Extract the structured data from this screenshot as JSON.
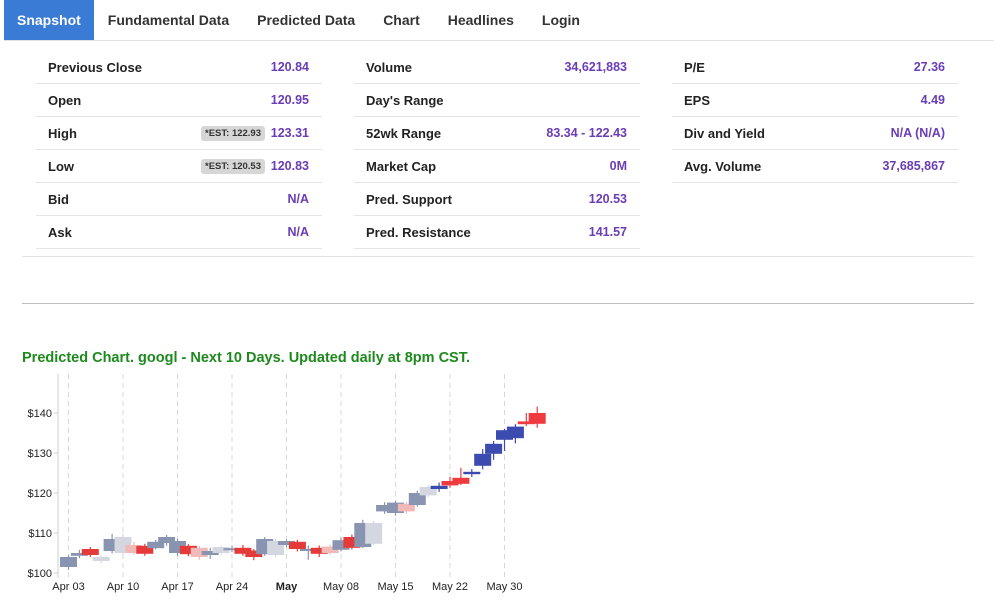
{
  "tabs": [
    {
      "label": "Snapshot",
      "active": true
    },
    {
      "label": "Fundamental Data",
      "active": false
    },
    {
      "label": "Predicted Data",
      "active": false
    },
    {
      "label": "Chart",
      "active": false
    },
    {
      "label": "Headlines",
      "active": false
    },
    {
      "label": "Login",
      "active": false
    }
  ],
  "snapshot": {
    "col1": [
      {
        "label": "Previous Close",
        "value": "120.84"
      },
      {
        "label": "Open",
        "value": "120.95"
      },
      {
        "label": "High",
        "value": "123.31",
        "est": "*EST: 122.93"
      },
      {
        "label": "Low",
        "value": "120.83",
        "est": "*EST: 120.53"
      },
      {
        "label": "Bid",
        "value": "N/A"
      },
      {
        "label": "Ask",
        "value": "N/A"
      }
    ],
    "col2": [
      {
        "label": "Volume",
        "value": "34,621,883"
      },
      {
        "label": "Day's Range",
        "value": ""
      },
      {
        "label": "52wk Range",
        "value": "83.34 - 122.43"
      },
      {
        "label": "Market Cap",
        "value": "0M"
      },
      {
        "label": "Pred. Support",
        "value": "120.53"
      },
      {
        "label": "Pred. Resistance",
        "value": "141.57"
      }
    ],
    "col3": [
      {
        "label": "P/E",
        "value": "27.36"
      },
      {
        "label": "EPS",
        "value": "4.49"
      },
      {
        "label": "Div and Yield",
        "value": "N/A (N/A)"
      },
      {
        "label": "Avg. Volume",
        "value": "37,685,867"
      }
    ]
  },
  "chart_title": "Predicted Chart. googl - Next 10 Days. Updated daily at 8pm CST.",
  "colors": {
    "title_green": "#1d8a1d",
    "value_purple": "#6a3cb5",
    "tab_active": "#3a7bd5",
    "hist_up": "#8894b0",
    "hist_down": "#d4d6e0",
    "hist_red": "#e53a3a",
    "hist_pink": "#f2b9b9",
    "pred_blue": "#3b4bb0",
    "pred_red": "#ef3a3f"
  },
  "chart_data": {
    "type": "candlestick",
    "title": "",
    "xlabel": "",
    "ylabel": "",
    "ylim": [
      100,
      144
    ],
    "yticks": [
      100,
      110,
      120,
      130,
      140
    ],
    "ytick_labels": [
      "$100",
      "$110",
      "$120",
      "$130",
      "$140"
    ],
    "xticks": [
      {
        "label": "Apr 03",
        "index": 0,
        "bold": false
      },
      {
        "label": "Apr 10",
        "index": 5,
        "bold": false
      },
      {
        "label": "Apr 17",
        "index": 10,
        "bold": false
      },
      {
        "label": "Apr 24",
        "index": 15,
        "bold": false
      },
      {
        "label": "May",
        "index": 20,
        "bold": true
      },
      {
        "label": "May 08",
        "index": 25,
        "bold": false
      },
      {
        "label": "May 15",
        "index": 30,
        "bold": false
      },
      {
        "label": "May 22",
        "index": 35,
        "bold": false
      },
      {
        "label": "May 30",
        "index": 40,
        "bold": false
      }
    ],
    "candles": [
      {
        "o": 101.5,
        "c": 104.0,
        "h": 104.5,
        "l": 100.8,
        "kind": "hist_up"
      },
      {
        "o": 104.3,
        "c": 105.0,
        "h": 105.8,
        "l": 103.7,
        "kind": "hist_up"
      },
      {
        "o": 104.5,
        "c": 106.0,
        "h": 106.5,
        "l": 104.0,
        "kind": "hist_red"
      },
      {
        "o": 104.0,
        "c": 103.0,
        "h": 104.4,
        "l": 102.5,
        "kind": "hist_down"
      },
      {
        "o": 105.5,
        "c": 108.5,
        "h": 109.8,
        "l": 104.9,
        "kind": "hist_up"
      },
      {
        "o": 109.0,
        "c": 105.0,
        "h": 109.9,
        "l": 104.5,
        "kind": "hist_down"
      },
      {
        "o": 105.0,
        "c": 107.0,
        "h": 107.8,
        "l": 104.6,
        "kind": "hist_pink"
      },
      {
        "o": 104.8,
        "c": 106.8,
        "h": 107.3,
        "l": 104.3,
        "kind": "hist_red"
      },
      {
        "o": 106.2,
        "c": 107.8,
        "h": 108.3,
        "l": 105.9,
        "kind": "hist_up"
      },
      {
        "o": 107.5,
        "c": 109.0,
        "h": 109.5,
        "l": 106.8,
        "kind": "hist_up"
      },
      {
        "o": 108.0,
        "c": 105.0,
        "h": 108.6,
        "l": 104.3,
        "kind": "hist_up"
      },
      {
        "o": 104.7,
        "c": 106.8,
        "h": 107.2,
        "l": 104.2,
        "kind": "hist_red"
      },
      {
        "o": 104.0,
        "c": 106.3,
        "h": 106.8,
        "l": 103.3,
        "kind": "hist_pink"
      },
      {
        "o": 104.5,
        "c": 105.5,
        "h": 106.3,
        "l": 103.5,
        "kind": "hist_up"
      },
      {
        "o": 105.0,
        "c": 106.5,
        "h": 106.8,
        "l": 104.6,
        "kind": "hist_down"
      },
      {
        "o": 105.8,
        "c": 106.2,
        "h": 106.8,
        "l": 105.2,
        "kind": "hist_up"
      },
      {
        "o": 104.8,
        "c": 106.3,
        "h": 107.0,
        "l": 104.3,
        "kind": "hist_red"
      },
      {
        "o": 104.0,
        "c": 105.6,
        "h": 106.0,
        "l": 103.2,
        "kind": "hist_red"
      },
      {
        "o": 104.7,
        "c": 108.5,
        "h": 109.0,
        "l": 104.3,
        "kind": "hist_up"
      },
      {
        "o": 108.0,
        "c": 104.5,
        "h": 108.5,
        "l": 104.0,
        "kind": "hist_down"
      },
      {
        "o": 107.0,
        "c": 108.0,
        "h": 108.4,
        "l": 106.4,
        "kind": "hist_up"
      },
      {
        "o": 106.0,
        "c": 107.8,
        "h": 108.3,
        "l": 105.4,
        "kind": "hist_red"
      },
      {
        "o": 105.6,
        "c": 106.0,
        "h": 106.9,
        "l": 103.3,
        "kind": "hist_up"
      },
      {
        "o": 104.8,
        "c": 106.3,
        "h": 106.9,
        "l": 104.0,
        "kind": "hist_red"
      },
      {
        "o": 105.0,
        "c": 106.6,
        "h": 107.1,
        "l": 104.6,
        "kind": "hist_pink"
      },
      {
        "o": 105.8,
        "c": 108.2,
        "h": 108.9,
        "l": 105.4,
        "kind": "hist_up"
      },
      {
        "o": 106.3,
        "c": 109.0,
        "h": 109.6,
        "l": 105.9,
        "kind": "hist_red"
      },
      {
        "o": 106.5,
        "c": 112.5,
        "h": 113.3,
        "l": 106.2,
        "kind": "hist_up"
      },
      {
        "o": 112.5,
        "c": 107.3,
        "h": 113.0,
        "l": 107.0,
        "kind": "hist_down"
      },
      {
        "o": 115.4,
        "c": 117.0,
        "h": 117.7,
        "l": 114.8,
        "kind": "hist_up"
      },
      {
        "o": 117.6,
        "c": 115.0,
        "h": 118.0,
        "l": 114.3,
        "kind": "hist_up"
      },
      {
        "o": 115.4,
        "c": 117.3,
        "h": 117.8,
        "l": 114.8,
        "kind": "hist_pink"
      },
      {
        "o": 117.0,
        "c": 120.0,
        "h": 120.6,
        "l": 116.6,
        "kind": "hist_up"
      },
      {
        "o": 119.4,
        "c": 121.5,
        "h": 122.0,
        "l": 118.9,
        "kind": "hist_down"
      },
      {
        "o": 121.0,
        "c": 121.8,
        "h": 122.6,
        "l": 120.3,
        "kind": "pred_blue"
      },
      {
        "o": 121.9,
        "c": 123.0,
        "h": 124.0,
        "l": 121.3,
        "kind": "pred_red"
      },
      {
        "o": 122.3,
        "c": 123.8,
        "h": 126.3,
        "l": 122.0,
        "kind": "pred_red"
      },
      {
        "o": 124.7,
        "c": 125.3,
        "h": 126.0,
        "l": 124.0,
        "kind": "pred_blue"
      },
      {
        "o": 126.8,
        "c": 129.8,
        "h": 131.0,
        "l": 125.9,
        "kind": "pred_blue"
      },
      {
        "o": 129.8,
        "c": 132.3,
        "h": 133.0,
        "l": 128.3,
        "kind": "pred_blue"
      },
      {
        "o": 133.3,
        "c": 135.7,
        "h": 136.0,
        "l": 130.5,
        "kind": "pred_blue"
      },
      {
        "o": 133.7,
        "c": 136.6,
        "h": 137.2,
        "l": 132.4,
        "kind": "pred_blue"
      },
      {
        "o": 137.2,
        "c": 137.9,
        "h": 140.0,
        "l": 136.7,
        "kind": "pred_red"
      },
      {
        "o": 137.3,
        "c": 140.0,
        "h": 141.6,
        "l": 136.3,
        "kind": "pred_red"
      }
    ]
  }
}
